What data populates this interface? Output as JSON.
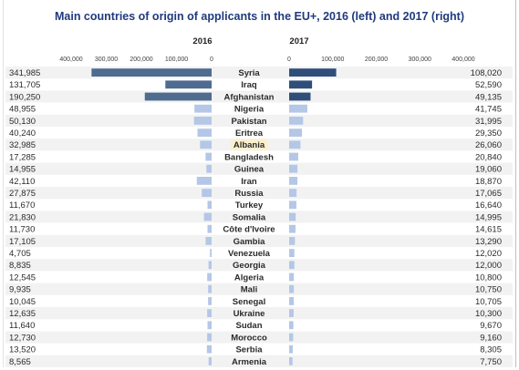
{
  "chart_data": {
    "type": "bar",
    "title": "Main countries of origin of applicants in the EU+, 2016 (left) and 2017 (right)",
    "categories": [
      "Syria",
      "Iraq",
      "Afghanistan",
      "Nigeria",
      "Pakistan",
      "Eritrea",
      "Albania",
      "Bangladesh",
      "Guinea",
      "Iran",
      "Russia",
      "Turkey",
      "Somalia",
      "Côte d'Ivoire",
      "Gambia",
      "Venezuela",
      "Georgia",
      "Algeria",
      "Mali",
      "Senegal",
      "Ukraine",
      "Sudan",
      "Morocco",
      "Serbia",
      "Armenia"
    ],
    "highlight_category": "Albania",
    "series": [
      {
        "name": "2016",
        "color_top": "#4f6b8f",
        "color_other": "#b4c7e7",
        "values": [
          341985,
          131705,
          190250,
          48955,
          50130,
          40240,
          32985,
          17285,
          14955,
          42110,
          27875,
          11670,
          21830,
          11730,
          17105,
          4705,
          8835,
          12545,
          9935,
          10045,
          12635,
          11640,
          12730,
          13520,
          8565
        ],
        "labels": [
          "341,985",
          "131,705",
          "190,250",
          "48,955",
          "50,130",
          "40,240",
          "32,985",
          "17,285",
          "14,955",
          "42,110",
          "27,875",
          "11,670",
          "21,830",
          "11,730",
          "17,105",
          "4,705",
          "8,835",
          "12,545",
          "9,935",
          "10,045",
          "12,635",
          "11,640",
          "12,730",
          "13,520",
          "8,565"
        ]
      },
      {
        "name": "2017",
        "color_top": "#2f4f7a",
        "color_other": "#b4c7e7",
        "values": [
          108020,
          52590,
          49135,
          41745,
          31995,
          29350,
          26060,
          20840,
          19060,
          18870,
          17065,
          16640,
          14995,
          14615,
          13290,
          12020,
          12000,
          10800,
          10750,
          10705,
          10300,
          9670,
          9160,
          8305,
          7750
        ],
        "labels": [
          "108,020",
          "52,590",
          "49,135",
          "41,745",
          "31,995",
          "29,350",
          "26,060",
          "20,840",
          "19,060",
          "18,870",
          "17,065",
          "16,640",
          "14,995",
          "14,615",
          "13,290",
          "12,020",
          "12,000",
          "10,800",
          "10,750",
          "10,705",
          "10,300",
          "9,670",
          "9,160",
          "8,305",
          "7,750"
        ]
      }
    ],
    "axis_ticks": {
      "left": [
        "400,000",
        "300,000",
        "200,000",
        "100,000",
        "0"
      ],
      "right": [
        "0",
        "100,000",
        "200,000",
        "300,000",
        "400,000"
      ]
    },
    "xlim": [
      0,
      400000
    ],
    "grid": false,
    "stripe_color": "#f2f2f2",
    "highlight_color": "#fcefcc"
  }
}
